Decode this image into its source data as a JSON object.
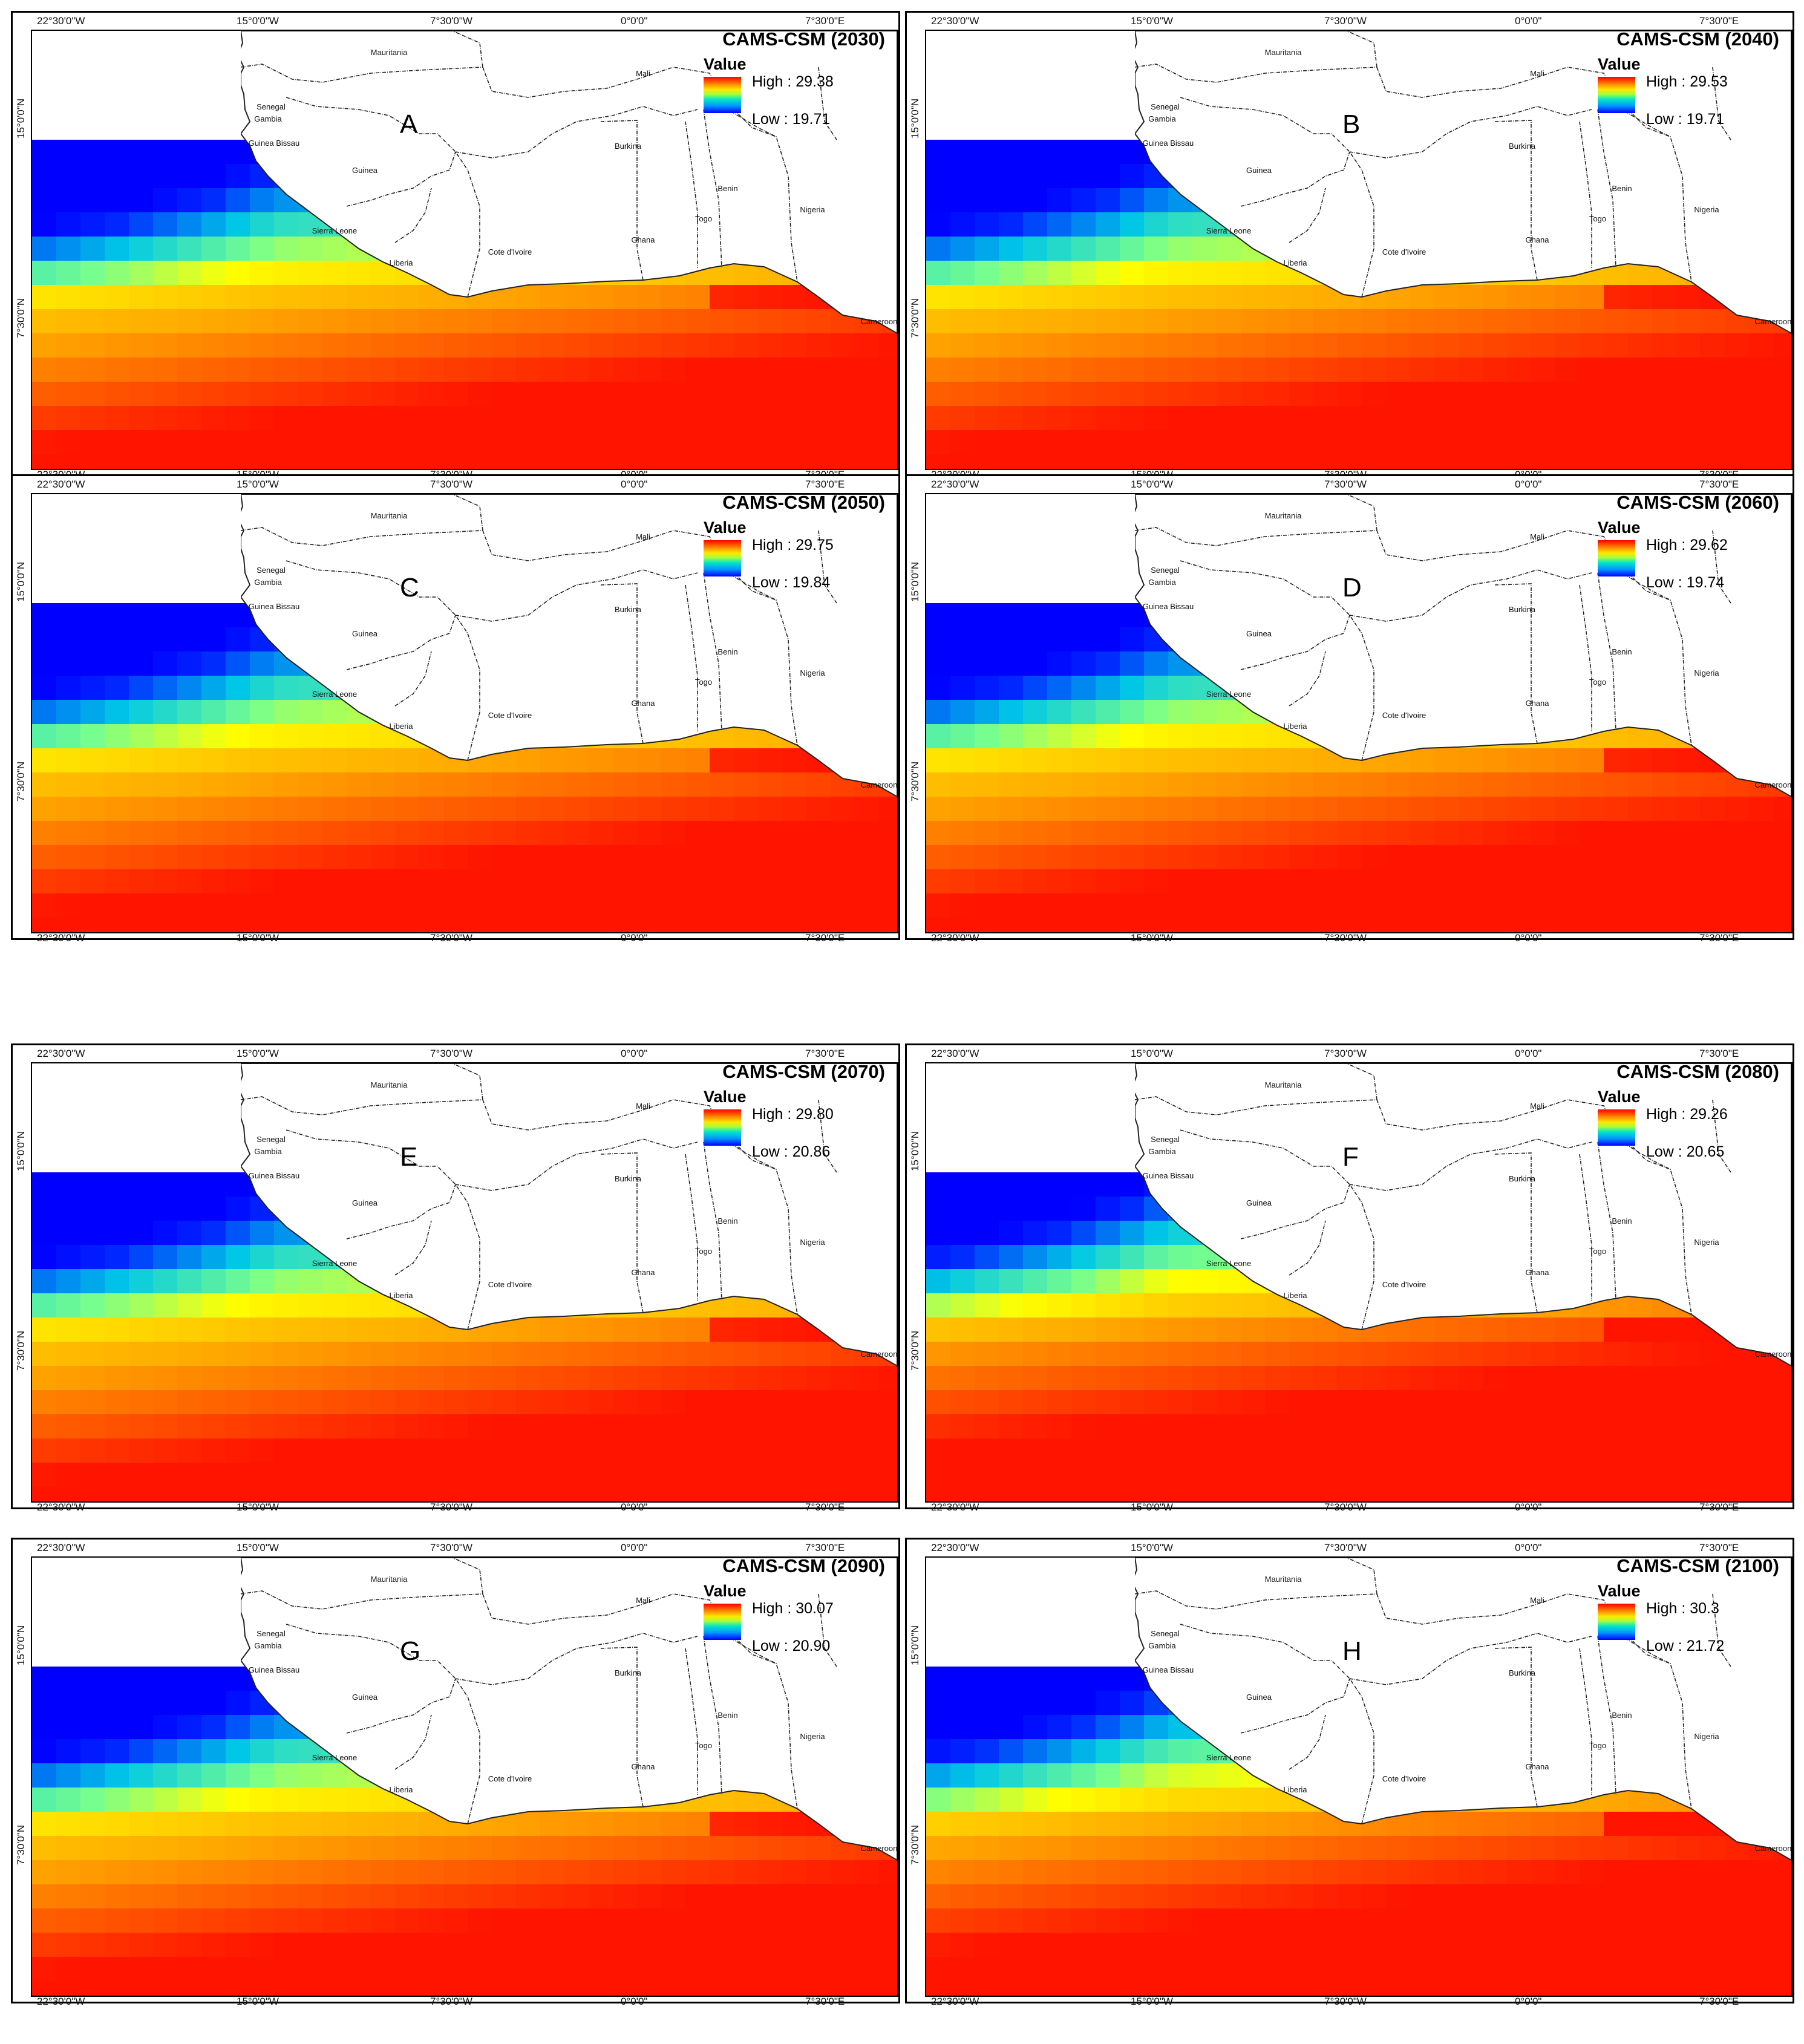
{
  "lon_ticks": [
    "22°30'0\"W",
    "15°0'0\"W",
    "7°30'0\"W",
    "0°0'0\"",
    "7°30'0\"E"
  ],
  "lat_ticks": [
    "15°0'0\"N",
    "7°30'0\"N"
  ],
  "legend_heading": "Value",
  "countries": [
    "Mauritania",
    "Mali",
    "Senegal",
    "Gambia",
    "Guinea Bissau",
    "Guinea",
    "Sierra Leone",
    "Liberia",
    "Cote d'Ivoire",
    "Burkina",
    "Ghana",
    "Togo",
    "Benin",
    "Nigeria",
    "Cameroon"
  ],
  "colors": {
    "low": "#0000ff",
    "mid_low": "#00d8e0",
    "mid": "#ffff00",
    "mid_high": "#ff9900",
    "high": "#ff0000"
  },
  "panels": [
    {
      "letter": "A",
      "title": "CAMS-CSM (2030)",
      "high": "High : 29.38",
      "low": "Low : 19.71"
    },
    {
      "letter": "B",
      "title": "CAMS-CSM (2040)",
      "high": "High : 29.53",
      "low": "Low : 19.71"
    },
    {
      "letter": "C",
      "title": "CAMS-CSM (2050)",
      "high": "High : 29.75",
      "low": "Low : 19.84"
    },
    {
      "letter": "D",
      "title": "CAMS-CSM (2060)",
      "high": "High : 29.62",
      "low": "Low : 19.74"
    },
    {
      "letter": "E",
      "title": "CAMS-CSM (2070)",
      "high": "High : 29.80",
      "low": "Low : 20.86"
    },
    {
      "letter": "F",
      "title": "CAMS-CSM (2080)",
      "high": "High : 29.26",
      "low": "Low : 20.65"
    },
    {
      "letter": "G",
      "title": "CAMS-CSM (2090)",
      "high": "High : 30.07",
      "low": "Low : 20.90"
    },
    {
      "letter": "H",
      "title": "CAMS-CSM (2100)",
      "high": "High : 30.3",
      "low": "Low : 21.72"
    }
  ]
}
